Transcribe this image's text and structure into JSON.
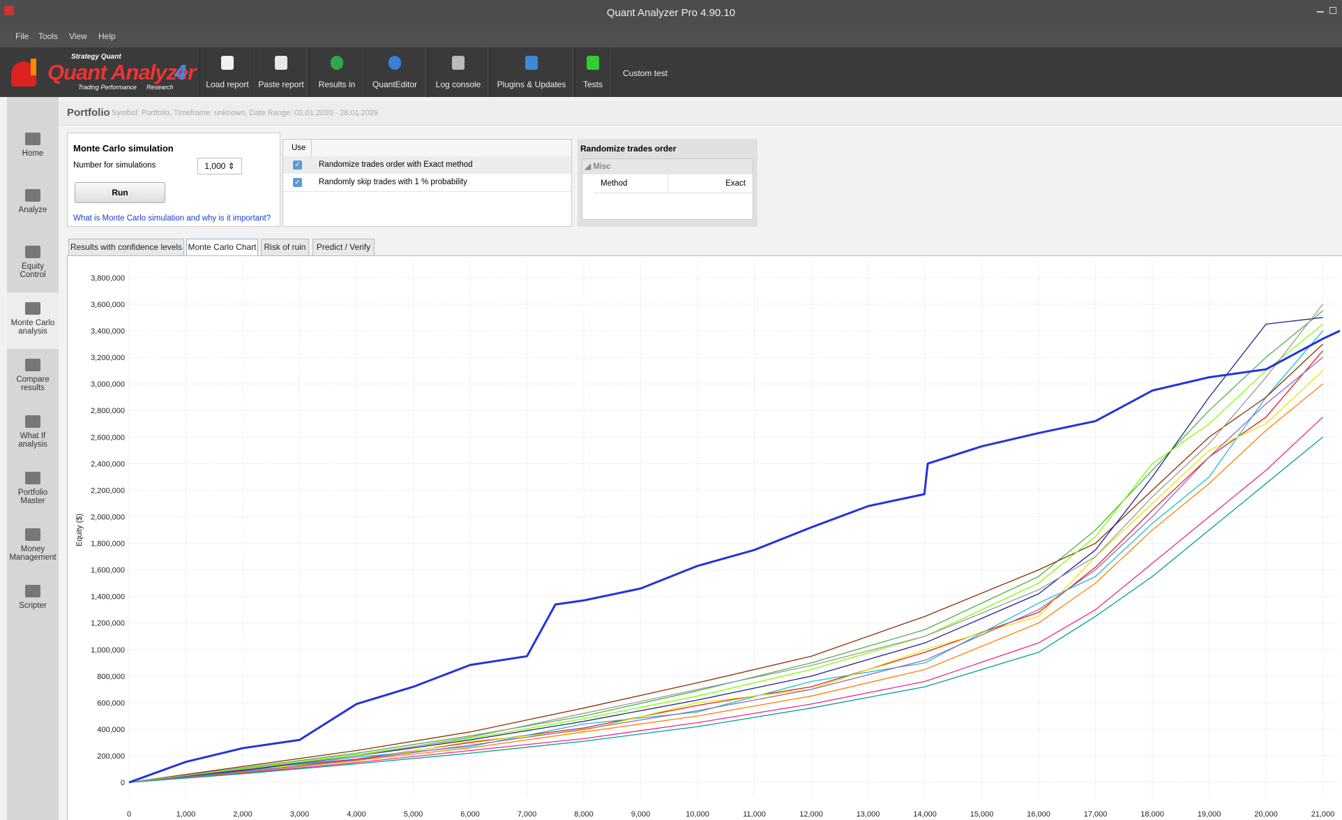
{
  "window_title": "Quant Analyzer Pro 4.90.10",
  "menu": [
    "File",
    "Tools",
    "View",
    "Help"
  ],
  "logo": {
    "brand": "Strategy Quant",
    "name": "Quant Analyzer",
    "version": "4",
    "tagline_left": "Trading Performance",
    "tagline_right": "Research"
  },
  "toolbar": [
    "Load report",
    "Paste report",
    "Results in",
    "QuantEditor",
    "Log console",
    "Plugins & Updates",
    "Tests",
    "Custom test"
  ],
  "sidebar": [
    "Home",
    "Analyze",
    "Equity Control",
    "Monte Carlo analysis",
    "Compare results",
    "What If analysis",
    "Portfolio Master",
    "Money Management",
    "Scripter"
  ],
  "header": {
    "title": "Portfolio",
    "info": "Symbol: Portfolio, Timeframe: unknown, Date Range: 02.01.2020 - 28.01.2026"
  },
  "mc_panel": {
    "title": "Monte Carlo simulation",
    "label": "Number for simulations",
    "value": "1,000",
    "button": "Run",
    "link": "What is Monte Carlo simulation and why is it important?"
  },
  "table": {
    "header": "Use",
    "rows": [
      "Randomize trades order with Exact method",
      "Randomly skip trades with 1 % probability"
    ]
  },
  "randomize_panel": {
    "title": "Randomize trades order",
    "group": "Misc",
    "property": "Method",
    "value": "Exact"
  },
  "tabs": [
    "Results with confidence levels",
    "Monte Carlo Chart",
    "Risk of ruin",
    "Predict / Verify"
  ],
  "chart_data": {
    "type": "line",
    "y_label": "Equity ($)",
    "xlim": [
      0,
      21300
    ],
    "ylim": [
      -120000,
      3920000
    ],
    "grid": true,
    "xticks": [
      0,
      {
        "value": 1000,
        "label": "1,000"
      },
      {
        "value": 2000,
        "label": "2,000"
      },
      {
        "value": 3000,
        "label": "3,000"
      },
      {
        "value": 4000,
        "label": "4,000"
      },
      {
        "value": 5000,
        "label": "5,000"
      },
      {
        "value": 6000,
        "label": "6,000"
      },
      {
        "value": 7000,
        "label": "7,000"
      },
      {
        "value": 8000,
        "label": "8,000"
      },
      {
        "value": 9000,
        "label": "9,000"
      },
      {
        "value": 10000,
        "label": "10,000"
      },
      {
        "value": 11000,
        "label": "11,000"
      },
      {
        "value": 12000,
        "label": "12,000"
      },
      {
        "value": 13000,
        "label": "13,000"
      },
      {
        "value": 14000,
        "label": "14,000"
      },
      {
        "value": 15000,
        "label": "15,000"
      },
      {
        "value": 16000,
        "label": "16,000"
      },
      {
        "value": 17000,
        "label": "17,000"
      },
      {
        "value": 18000,
        "label": "18,000"
      },
      {
        "value": 19000,
        "label": "19,000"
      },
      {
        "value": 20000,
        "label": "20,000"
      },
      {
        "value": 21000,
        "label": "21,000"
      }
    ],
    "yticks": [
      0,
      {
        "value": 200000,
        "label": "200,000"
      },
      {
        "value": 400000,
        "label": "400,000"
      },
      {
        "value": 600000,
        "label": "600,000"
      },
      {
        "value": 800000,
        "label": "800,000"
      },
      {
        "value": 1000000,
        "label": "1,000,000"
      },
      {
        "value": 1200000,
        "label": "1,200,000"
      },
      {
        "value": 1400000,
        "label": "1,400,000"
      },
      {
        "value": 1600000,
        "label": "1,600,000"
      },
      {
        "value": 1800000,
        "label": "1,800,000"
      },
      {
        "value": 2000000,
        "label": "2,000,000"
      },
      {
        "value": 2200000,
        "label": "2,200,000"
      },
      {
        "value": 2400000,
        "label": "2,400,000"
      },
      {
        "value": 2600000,
        "label": "2,600,000"
      },
      {
        "value": 2800000,
        "label": "2,800,000"
      },
      {
        "value": 3000000,
        "label": "3,000,000"
      },
      {
        "value": 3200000,
        "label": "3,200,000"
      },
      {
        "value": 3400000,
        "label": "3,400,000"
      },
      {
        "value": 3600000,
        "label": "3,600,000"
      },
      {
        "value": 3800000,
        "label": "3,800,000"
      }
    ],
    "series": [
      {
        "color": "#e41a1c",
        "x": [
          0,
          2000,
          4000,
          6000,
          8000,
          10000,
          12000,
          14000,
          16000,
          17000,
          18000,
          19000,
          20000,
          21000
        ],
        "values": [
          0,
          95000,
          175000,
          300000,
          410000,
          580000,
          720000,
          980000,
          1280000,
          1620000,
          2050000,
          2450000,
          2750000,
          3250000
        ]
      },
      {
        "color": "#4daf4a",
        "x": [
          0,
          2000,
          4000,
          6000,
          8000,
          10000,
          12000,
          14000,
          16000,
          17000,
          18000,
          19000,
          20000,
          21000
        ],
        "values": [
          0,
          110000,
          220000,
          350000,
          500000,
          690000,
          900000,
          1150000,
          1550000,
          1900000,
          2350000,
          2800000,
          3200000,
          3550000
        ]
      },
      {
        "color": "#e7298a",
        "x": [
          0,
          2000,
          4000,
          6000,
          8000,
          10000,
          12000,
          14000,
          16000,
          17000,
          18000,
          19000,
          20000,
          21000
        ],
        "values": [
          0,
          70000,
          150000,
          240000,
          330000,
          450000,
          590000,
          760000,
          1050000,
          1300000,
          1650000,
          2000000,
          2350000,
          2750000
        ]
      },
      {
        "color": "#17becf",
        "x": [
          0,
          2000,
          4000,
          6000,
          8000,
          10000,
          12000,
          14000,
          16000,
          17000,
          18000,
          19000,
          20000,
          21000
        ],
        "values": [
          0,
          85000,
          190000,
          270000,
          440000,
          530000,
          760000,
          900000,
          1350000,
          1550000,
          1950000,
          2300000,
          2900000,
          3400000
        ]
      },
      {
        "color": "#e6e600",
        "x": [
          0,
          2000,
          4000,
          6000,
          8000,
          10000,
          12000,
          14000,
          16000,
          17000,
          18000,
          19000,
          20000,
          21000
        ],
        "values": [
          0,
          100000,
          160000,
          310000,
          390000,
          600000,
          700000,
          1000000,
          1250000,
          1700000,
          2100000,
          2500000,
          2700000,
          3100000
        ]
      },
      {
        "color": "#8c2d04",
        "x": [
          0,
          2000,
          4000,
          6000,
          8000,
          10000,
          12000,
          14000,
          16000,
          17000,
          18000,
          19000,
          20000,
          21000
        ],
        "values": [
          0,
          120000,
          240000,
          380000,
          560000,
          750000,
          950000,
          1250000,
          1600000,
          1800000,
          2200000,
          2600000,
          2900000,
          3300000
        ]
      },
      {
        "color": "#ff7f00",
        "x": [
          0,
          2000,
          4000,
          6000,
          8000,
          10000,
          12000,
          14000,
          16000,
          17000,
          18000,
          19000,
          20000,
          21000
        ],
        "values": [
          0,
          75000,
          165000,
          260000,
          380000,
          500000,
          650000,
          850000,
          1200000,
          1500000,
          1900000,
          2250000,
          2650000,
          3000000
        ]
      },
      {
        "color": "#1f1f8f",
        "x": [
          0,
          2000,
          4000,
          6000,
          8000,
          10000,
          12000,
          14000,
          16000,
          17000,
          18000,
          19000,
          20000,
          21000
        ],
        "values": [
          0,
          90000,
          200000,
          320000,
          460000,
          620000,
          800000,
          1050000,
          1420000,
          1750000,
          2300000,
          2900000,
          3450000,
          3500000
        ]
      },
      {
        "color": "#9467bd",
        "x": [
          0,
          2000,
          4000,
          6000,
          8000,
          10000,
          12000,
          14000,
          16000,
          17000,
          18000,
          19000,
          20000,
          21000
        ],
        "values": [
          0,
          80000,
          170000,
          280000,
          400000,
          540000,
          700000,
          920000,
          1300000,
          1600000,
          2000000,
          2450000,
          2850000,
          3200000
        ]
      },
      {
        "color": "#7fff00",
        "x": [
          0,
          2000,
          4000,
          6000,
          8000,
          10000,
          12000,
          14000,
          16000,
          17000,
          18000,
          19000,
          20000,
          21000
        ],
        "values": [
          0,
          105000,
          210000,
          330000,
          480000,
          650000,
          850000,
          1100000,
          1500000,
          1850000,
          2400000,
          2700000,
          3100000,
          3450000
        ]
      },
      {
        "color": "#00a08a",
        "x": [
          0,
          2000,
          4000,
          6000,
          8000,
          10000,
          12000,
          14000,
          16000,
          17000,
          18000,
          19000,
          20000,
          21000
        ],
        "values": [
          0,
          65000,
          140000,
          220000,
          310000,
          420000,
          560000,
          720000,
          980000,
          1250000,
          1550000,
          1900000,
          2250000,
          2600000
        ]
      },
      {
        "color": "#999999",
        "x": [
          0,
          2000,
          4000,
          6000,
          8000,
          10000,
          12000,
          14000,
          16000,
          17000,
          18000,
          19000,
          20000,
          21000
        ],
        "values": [
          0,
          100000,
          200000,
          340000,
          520000,
          700000,
          880000,
          1100000,
          1450000,
          1700000,
          2150000,
          2550000,
          3050000,
          3600000
        ]
      },
      {
        "color": "#2233dd",
        "x": [
          0,
          1000,
          2000,
          3000,
          4000,
          5000,
          6000,
          7000,
          7500,
          8000,
          9000,
          10000,
          11000,
          12000,
          13000,
          13990,
          14050,
          15000,
          16000,
          17000,
          18000,
          19000,
          20000,
          21000,
          21300
        ],
        "values": [
          0,
          155000,
          258000,
          320000,
          590000,
          720000,
          884000,
          950000,
          1340000,
          1370000,
          1460000,
          1630000,
          1750000,
          1920000,
          2080000,
          2170000,
          2400000,
          2530000,
          2630000,
          2720000,
          2950000,
          3050000,
          3110000,
          3340000,
          3400000
        ]
      }
    ]
  }
}
